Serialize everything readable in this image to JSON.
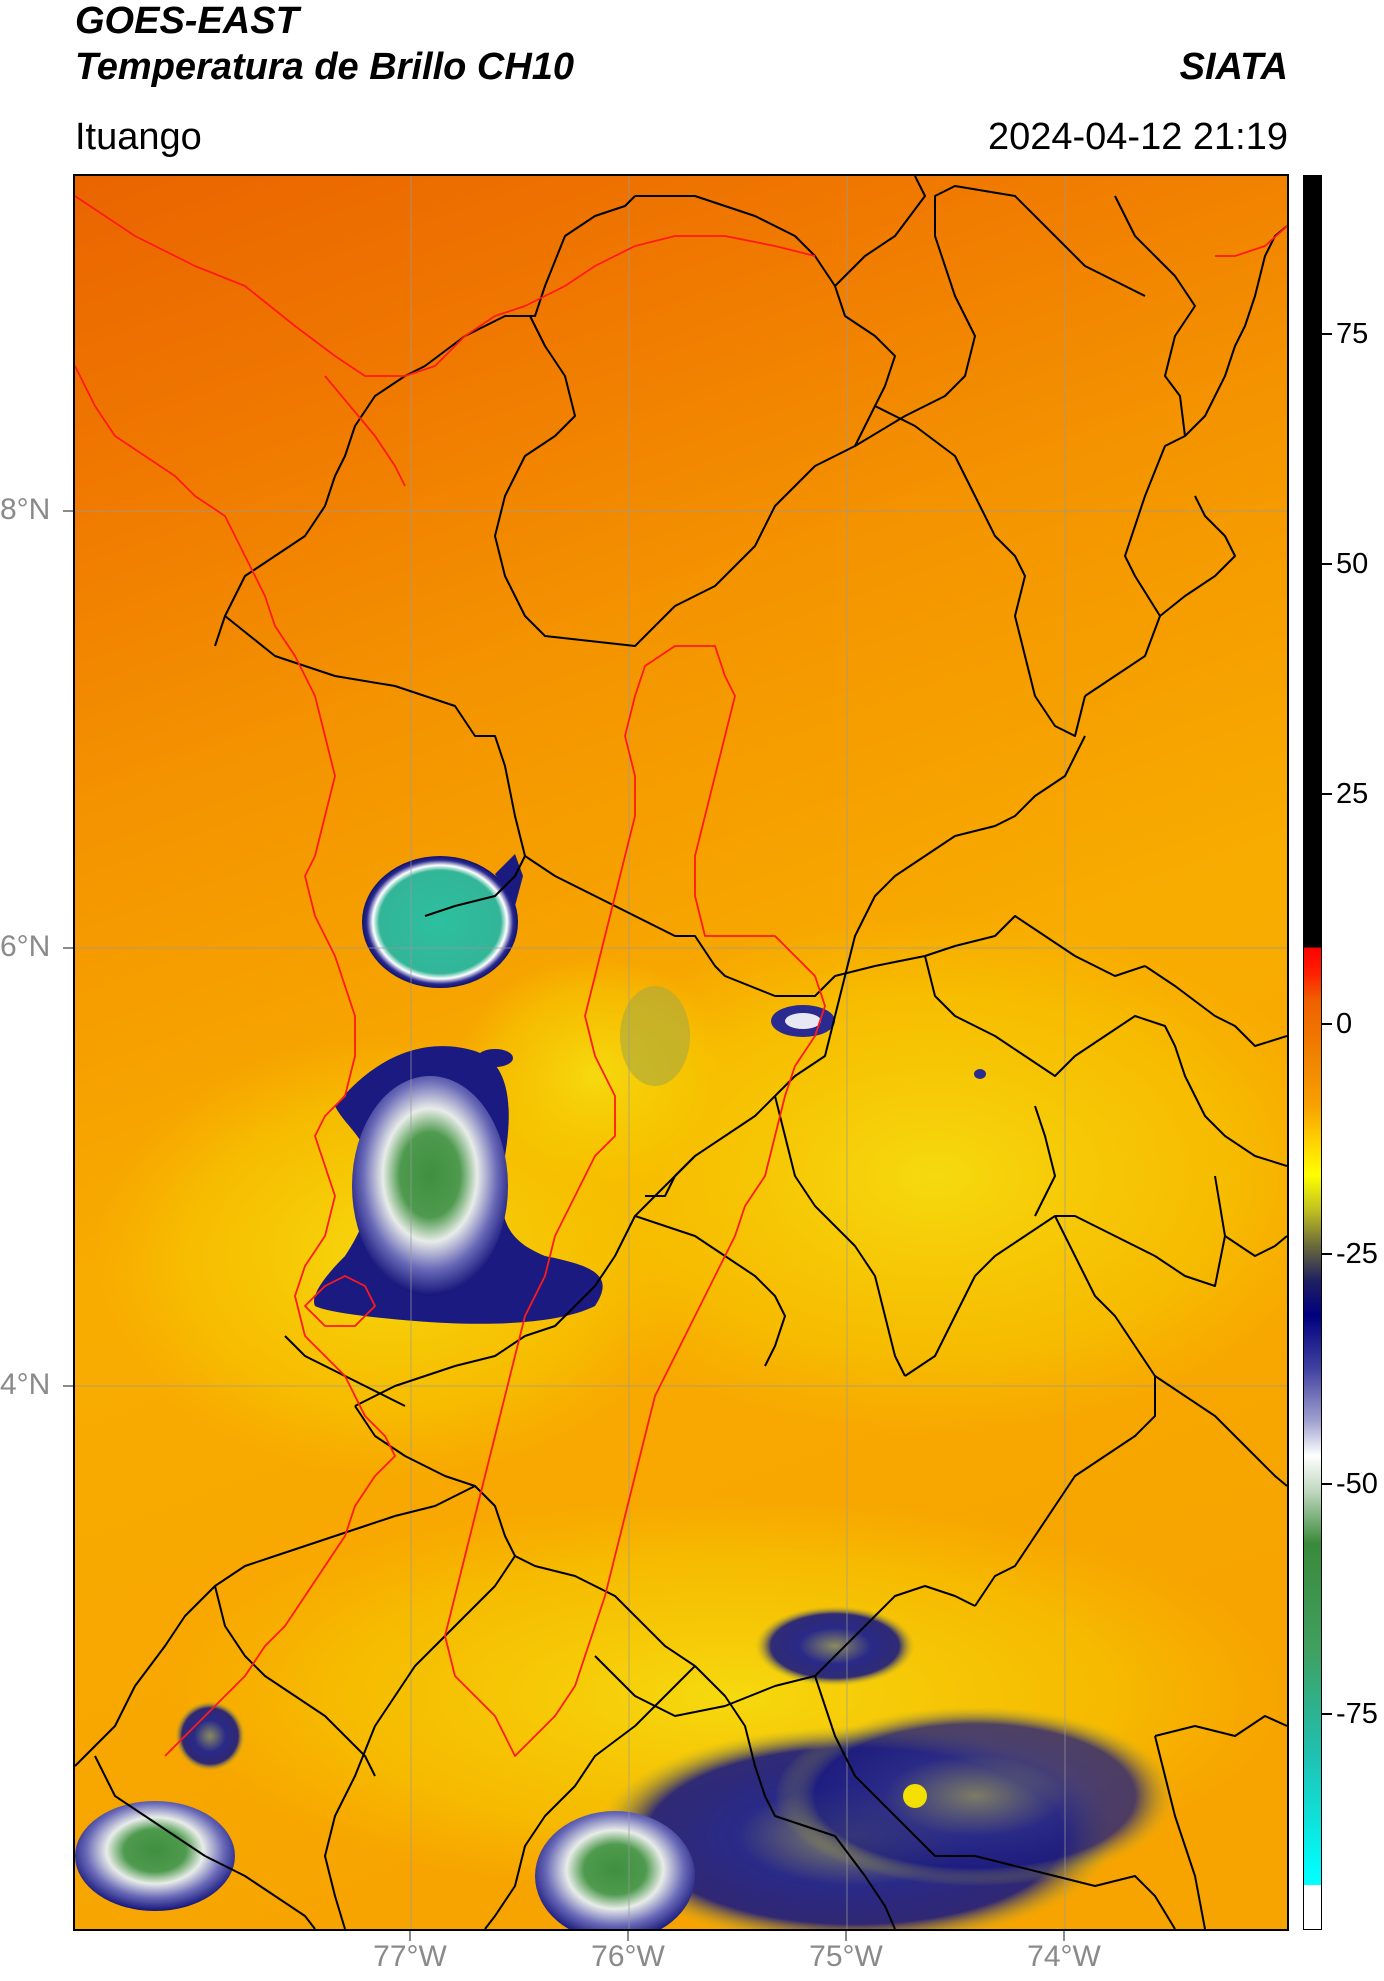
{
  "header": {
    "title_line1": "GOES-EAST",
    "title_line2": "Temperatura de Brillo CH10",
    "brand": "SIATA",
    "location": "Ituango",
    "datetime": "2024-04-12 21:19"
  },
  "map": {
    "x_ticks": [
      "77°W",
      "76°W",
      "75°W",
      "74°W"
    ],
    "y_ticks": [
      "8°N",
      "6°N",
      "4°N"
    ],
    "colors": {
      "warm_orange": "#f07800",
      "mid_orange": "#f7a000",
      "yellow": "#f4d600",
      "cloud_navy": "#1a1a80",
      "cloud_white": "#f0f0f0",
      "cloud_green": "#3a8a3a",
      "teal": "#2bbfa0",
      "border_black": "#000000",
      "border_red": "#ff1a1a",
      "grid": "#9a9a9a"
    }
  },
  "colorbar": {
    "ticks": [
      "75",
      "50",
      "25",
      "0",
      "-25",
      "-50",
      "-75"
    ],
    "colors": {
      "black_top": "#000000",
      "red": "#ff0000",
      "orange": "#f08000",
      "yellow": "#ffff00",
      "olive": "#6b6b3a",
      "navy": "#000080",
      "white": "#ffffff",
      "green": "#3a8a3a",
      "cyan": "#00ffff"
    }
  }
}
